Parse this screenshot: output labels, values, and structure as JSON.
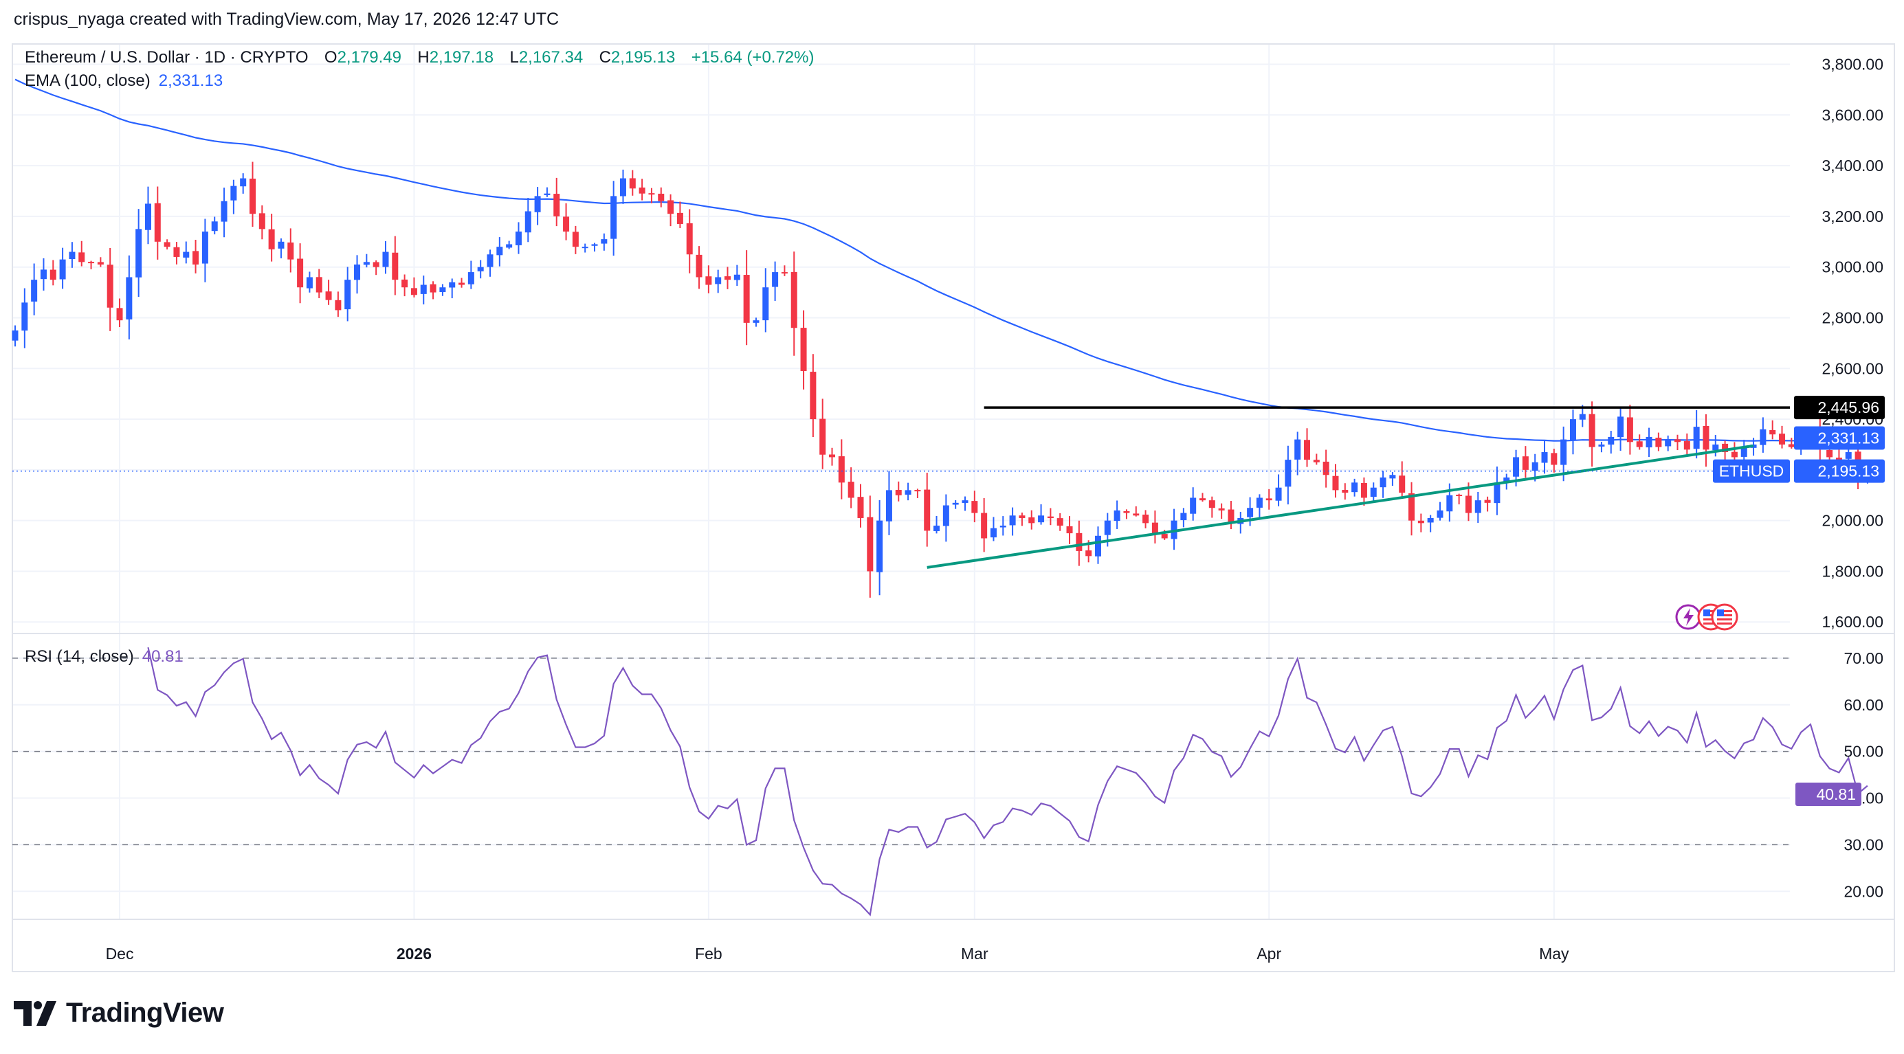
{
  "header": {
    "credit": "crispus_nyaga created with TradingView.com, May 17, 2026 12:47 UTC",
    "symbol": "Ethereum / U.S. Dollar · 1D · CRYPTO",
    "open_label": "O",
    "open": "2,179.49",
    "high_label": "H",
    "high": "2,197.18",
    "low_label": "L",
    "low": "2,167.34",
    "close_label": "C",
    "close": "2,195.13",
    "change": "+15.64 (+0.72%)",
    "ema_label": "EMA (100, close)",
    "ema_value": "2,331.13",
    "rsi_label": "RSI (14, close)",
    "rsi_value": "40.81"
  },
  "brand": {
    "name": "TradingView"
  },
  "colors": {
    "up": "#2962ff",
    "down": "#f23645",
    "ema": "#2962ff",
    "rsi": "#7e57c2",
    "trendline": "#089981",
    "resistance": "#000000",
    "price_label": "#2962ff",
    "positive_text": "#089981"
  },
  "chart_data": [
    {
      "type": "candlestick",
      "symbol_label": "ETHUSD",
      "price_axis_ticks": [
        "3,800.00",
        "3,600.00",
        "3,400.00",
        "3,200.00",
        "3,000.00",
        "2,800.00",
        "2,600.00",
        "2,400.00",
        "2,200.00",
        "2,000.00",
        "1,800.00",
        "1,600.00"
      ],
      "price_axis_values": [
        3800,
        3600,
        3400,
        3200,
        3000,
        2800,
        2600,
        2400,
        2200,
        2000,
        1800,
        1600
      ],
      "x_ticks": [
        "Dec",
        "2026",
        "Feb",
        "Mar",
        "Apr",
        "May"
      ],
      "x_tick_dates": [
        "2025-12-01",
        "2026-01-01",
        "2026-02-01",
        "2026-03-01",
        "2026-04-01",
        "2026-05-01"
      ],
      "start_date": "2025-11-20",
      "last_date": "2026-05-17",
      "ylim": [
        1560,
        3880
      ],
      "closes": [
        2750,
        2860,
        2950,
        2990,
        2950,
        3030,
        3060,
        3020,
        3020,
        3010,
        2840,
        2790,
        2960,
        3150,
        3250,
        3100,
        3080,
        3040,
        3060,
        3010,
        3140,
        3180,
        3260,
        3320,
        3350,
        3210,
        3150,
        3070,
        3100,
        3030,
        2920,
        2960,
        2900,
        2870,
        2830,
        2950,
        3010,
        3020,
        3000,
        3060,
        2950,
        2920,
        2890,
        2930,
        2900,
        2920,
        2940,
        2930,
        2980,
        3000,
        3050,
        3080,
        3090,
        3140,
        3220,
        3280,
        3290,
        3200,
        3140,
        3080,
        3080,
        3090,
        3110,
        3280,
        3350,
        3310,
        3290,
        3290,
        3260,
        3210,
        3170,
        3050,
        2960,
        2930,
        2960,
        2950,
        2970,
        2780,
        2790,
        2920,
        2980,
        2980,
        2760,
        2590,
        2400,
        2260,
        2250,
        2150,
        2090,
        2010,
        1800,
        2000,
        2120,
        2100,
        2120,
        2120,
        1960,
        1980,
        2060,
        2070,
        2080,
        2030,
        1930,
        1970,
        1980,
        2020,
        2010,
        1990,
        2020,
        2010,
        1980,
        1950,
        1880,
        1860,
        1940,
        2000,
        2040,
        2030,
        2020,
        1990,
        1950,
        1930,
        2000,
        2030,
        2090,
        2080,
        2050,
        2040,
        1990,
        2010,
        2050,
        2090,
        2080,
        2130,
        2240,
        2320,
        2240,
        2230,
        2180,
        2120,
        2110,
        2150,
        2090,
        2130,
        2170,
        2180,
        2110,
        2000,
        1990,
        2010,
        2040,
        2100,
        2100,
        2030,
        2080,
        2070,
        2150,
        2170,
        2250,
        2200,
        2230,
        2270,
        2220,
        2320,
        2400,
        2420,
        2290,
        2300,
        2330,
        2410,
        2310,
        2290,
        2330,
        2290,
        2320,
        2310,
        2280,
        2370,
        2280,
        2300,
        2270,
        2250,
        2290,
        2300,
        2360,
        2340,
        2300,
        2290,
        2330,
        2350,
        2280,
        2250,
        2240,
        2270,
        2179.49,
        2195.13
      ],
      "ema_100": {
        "current": 2331.13
      },
      "rsi": {
        "period": 14,
        "current": 40.81,
        "axis_ticks": [
          "70.00",
          "60.00",
          "50.00",
          "40.00",
          "30.00",
          "20.00"
        ],
        "axis_values": [
          70,
          60,
          50,
          40,
          30,
          20
        ],
        "levels": [
          70,
          50,
          30
        ],
        "ylim": [
          14,
          75
        ]
      },
      "annotations": {
        "resistance": {
          "value": 2445.96,
          "label": "2,445.96",
          "from": "2026-03-02",
          "to": "2026-05-17"
        },
        "trendline": {
          "from_date": "2026-02-24",
          "from_value": 1815,
          "to_date": "2026-05-22",
          "to_value": 2295
        },
        "last_price_label": "2,195.13",
        "ema_price_label": "2,331.13",
        "rsi_label": "40.81"
      }
    }
  ]
}
